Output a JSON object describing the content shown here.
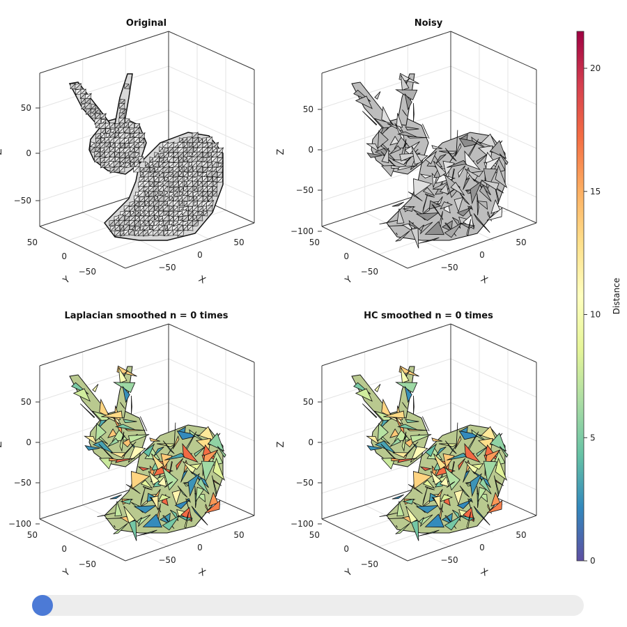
{
  "panels": [
    {
      "title": "Original",
      "style": "mesh-dense"
    },
    {
      "title": "Noisy",
      "style": "mesh-noisy-gray"
    },
    {
      "title": "Laplacian smoothed n = 0 times",
      "style": "mesh-noisy-colored"
    },
    {
      "title": "HC smoothed n = 0 times",
      "style": "mesh-noisy-colored"
    }
  ],
  "axes": {
    "x_label": "X",
    "y_label": "Y",
    "z_label": "Z",
    "x_ticks": [
      "−50",
      "0",
      "50"
    ],
    "y_ticks": [
      "50",
      "0",
      "−50"
    ],
    "z_ticks_original": [
      "50",
      "0",
      "−50"
    ],
    "z_ticks_other": [
      "50",
      "0",
      "−50",
      "−100"
    ]
  },
  "colorbar": {
    "label": "Distance",
    "ticks": [
      "0",
      "5",
      "10",
      "15",
      "20"
    ],
    "colormap": "Spectral (reversed)",
    "colors": [
      "#5e4fa2",
      "#3288bd",
      "#66c2a5",
      "#abdda4",
      "#e6f598",
      "#ffffbf",
      "#fee08b",
      "#fdae61",
      "#f46d43",
      "#d53e4f",
      "#9e0142"
    ],
    "range": [
      0,
      21.5
    ]
  },
  "slider": {
    "value_fraction": 0.0,
    "knob_color": "#4c7ad6"
  }
}
